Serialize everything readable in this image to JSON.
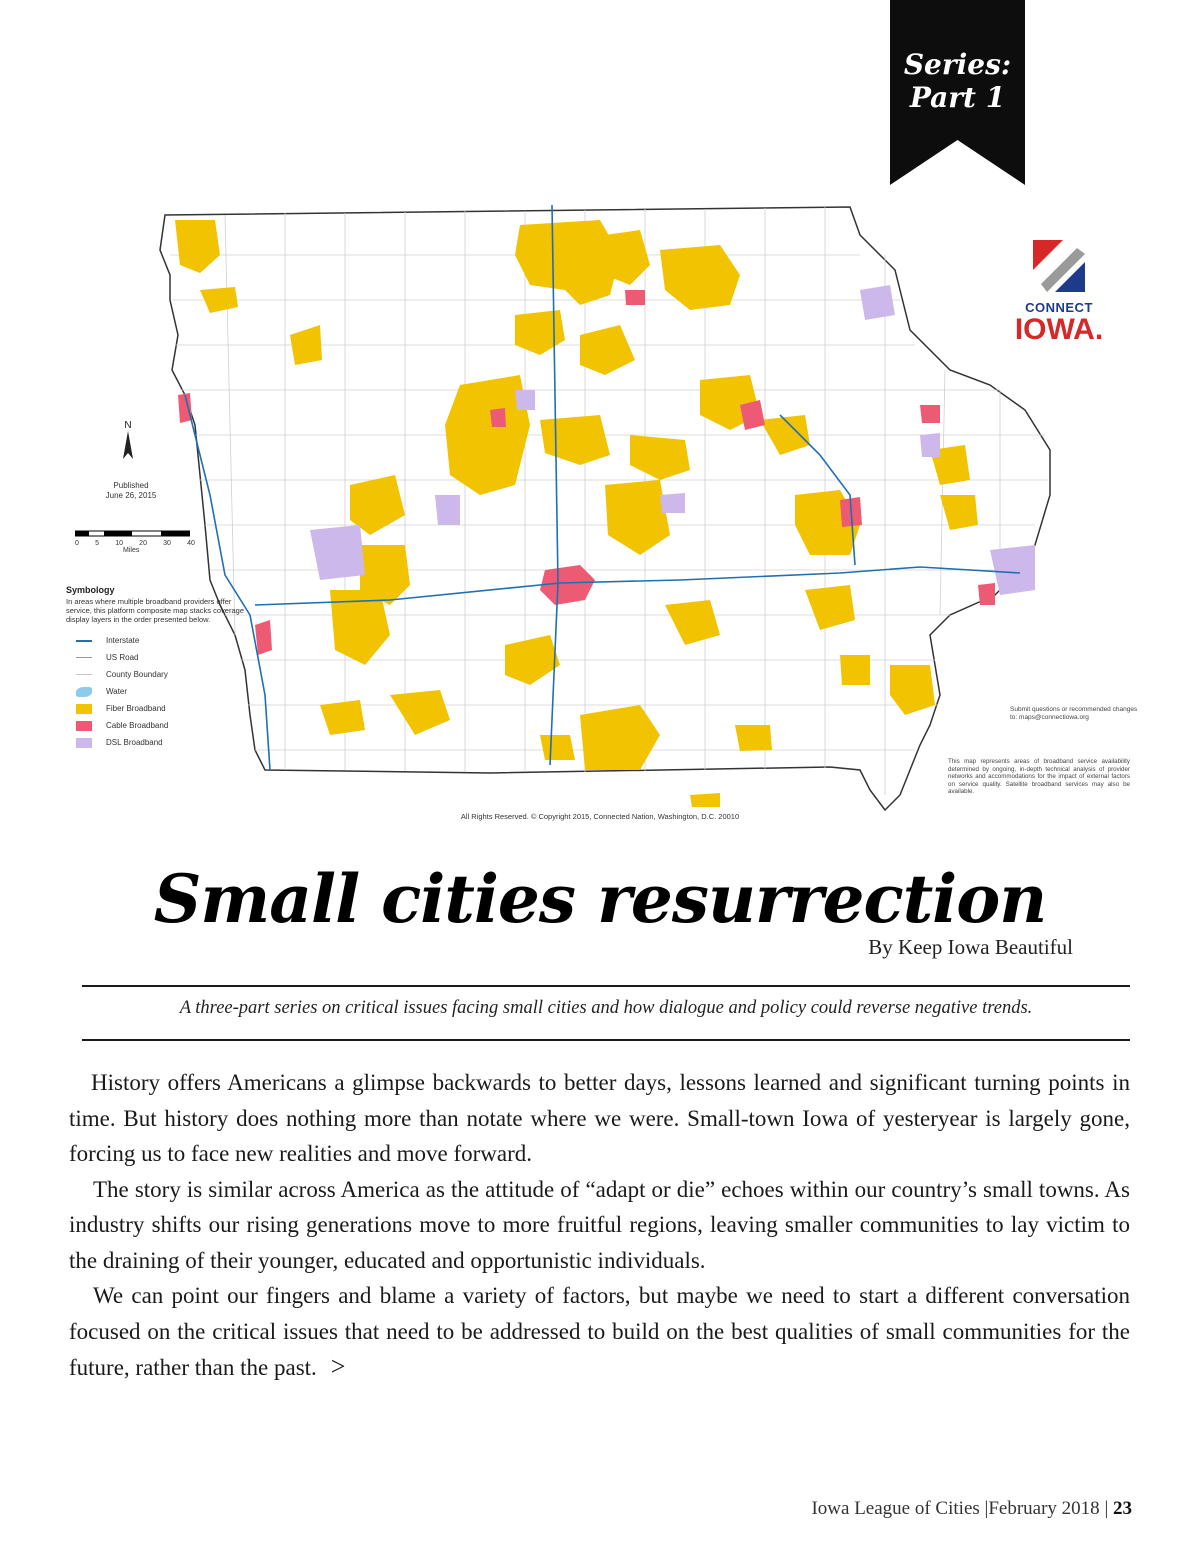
{
  "ribbon": {
    "line1": "Series:",
    "line2": "Part 1"
  },
  "map": {
    "logo": {
      "line1": "CONNECT",
      "line2": "IOWA."
    },
    "north_label": "N",
    "published": {
      "line1": "Published",
      "line2": "June 26, 2015"
    },
    "scale": {
      "ticks": [
        "0",
        "5",
        "10",
        "20",
        "30",
        "40"
      ],
      "unit": "Miles"
    },
    "legend": {
      "title": "Symbology",
      "description": "In areas where multiple broadband providers offer service, this platform composite map stacks coverage display layers in the order presented below.",
      "items": [
        {
          "label": "Interstate",
          "color": "#1f6fb2",
          "kind": "line"
        },
        {
          "label": "US Road",
          "color": "#9a9a9a",
          "kind": "line"
        },
        {
          "label": "County Boundary",
          "color": "#c7c7c7",
          "kind": "line"
        },
        {
          "label": "Water",
          "color": "#8ec9ee",
          "kind": "water"
        },
        {
          "label": "Fiber Broadband",
          "color": "#f2c300",
          "kind": "box"
        },
        {
          "label": "Cable Broadband",
          "color": "#ec5b73",
          "kind": "box"
        },
        {
          "label": "DSL Broadband",
          "color": "#cdb8ec",
          "kind": "box"
        }
      ]
    },
    "note_submit": "Submit questions or recommended changes to: maps@connectiowa.org",
    "note_disclaimer": "This map represents areas of broadband service availability determined by ongoing, in-depth technical analysis of provider networks and accommodations for the impact of external factors on service quality. Satellite broadband services may also be available.",
    "copyright": "All Rights Reserved. © Copyright 2015, Connected Nation, Washington, D.C. 20010",
    "colors": {
      "fiber": "#f2c300",
      "cable": "#ec5b73",
      "dsl": "#cdb8ec",
      "interstate": "#1f6fb2"
    }
  },
  "article": {
    "title": "Small cities resurrection",
    "byline": "By Keep Iowa Beautiful",
    "subhead": "A three-part series on critical issues facing small cities and how dialogue and policy could reverse negative trends.",
    "paragraphs": [
      "History offers Americans a glimpse backwards to better days, lessons learned and significant turning points in time. But history does nothing more than notate where we were. Small-town Iowa of yesteryear is largely gone, forcing us to face new realities and move forward.",
      "The story is similar across America as the attitude of “adapt or die” echoes within our country’s small towns. As industry shifts our rising generations move to more fruitful regions, leaving smaller communities to lay victim to the draining of their younger, educated and opportunistic individuals.",
      "We can point our fingers and blame a variety of factors, but maybe we need to start a different conversation focused on the critical issues that need to be addressed to build on the best qualities of small communities for the future, rather than the past."
    ],
    "continue_glyph": ">"
  },
  "footer": {
    "publication": "Iowa League of Cities",
    "issue": "February 2018",
    "page": "23"
  }
}
